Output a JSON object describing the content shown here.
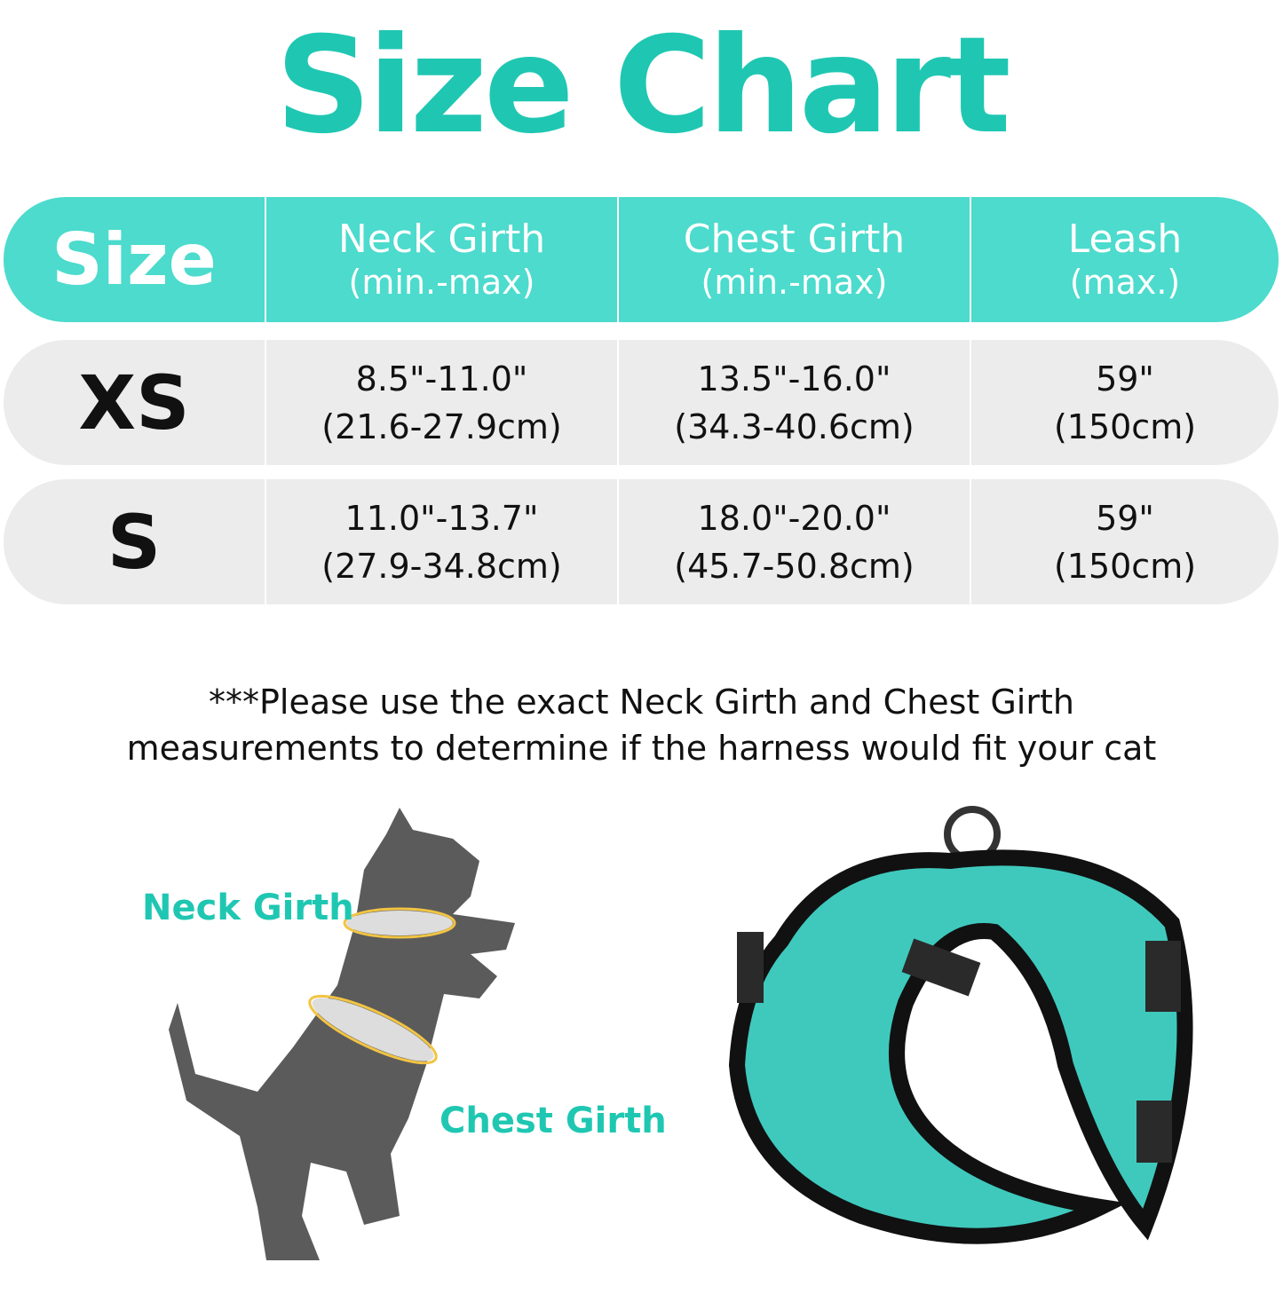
{
  "title": "Size Chart",
  "colors": {
    "accent": "#1fc7b2",
    "header_bg": "#4cdbcd",
    "row_bg": "#ececec"
  },
  "table": {
    "headers": [
      {
        "main": "Size",
        "sub": ""
      },
      {
        "main": "Neck Girth",
        "sub": "(min.-max)"
      },
      {
        "main": "Chest Girth",
        "sub": "(min.-max)"
      },
      {
        "main": "Leash",
        "sub": "(max.)"
      }
    ],
    "rows": [
      {
        "size": "XS",
        "neck": [
          "8.5\"-11.0\"",
          "(21.6-27.9cm)"
        ],
        "chest": [
          "13.5\"-16.0\"",
          "(34.3-40.6cm)"
        ],
        "leash": [
          "59\"",
          "(150cm)"
        ]
      },
      {
        "size": "S",
        "neck": [
          "11.0\"-13.7\"",
          "(27.9-34.8cm)"
        ],
        "chest": [
          "18.0\"-20.0\"",
          "(45.7-50.8cm)"
        ],
        "leash": [
          "59\"",
          "(150cm)"
        ]
      }
    ]
  },
  "note": [
    "***Please use the exact Neck Girth and Chest Girth",
    "measurements to determine if the harness would fit your cat"
  ],
  "diagram": {
    "neck_label": "Neck Girth",
    "chest_label": "Chest Girth"
  }
}
